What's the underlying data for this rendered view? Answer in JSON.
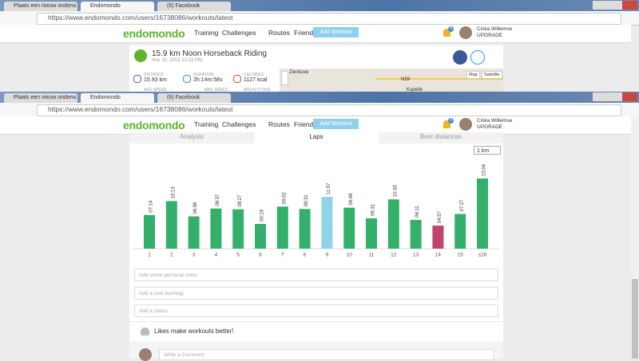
{
  "windows": [
    {
      "tabs": [
        "Plaats een nieuw onderw...",
        "Endomondo",
        "(6) Facebook"
      ],
      "url": "https://www.endomondo.com/users/16738086/workouts/latest",
      "nav": {
        "logo": "endomondo",
        "links": [
          "Training",
          "Challenges",
          "Routes",
          "Friends"
        ],
        "button": "Add Workout",
        "badge": "4",
        "user": "Ciska Willemse",
        "upgrade": "UPGRADE"
      }
    },
    {
      "tabs": [
        "Plaats een nieuw onderw...",
        "Endomondo",
        "(6) Facebook"
      ],
      "url": "https://www.endomondo.com/users/16738086/workouts/latest",
      "nav": {
        "logo": "endomondo",
        "links": [
          "Training",
          "Challenges",
          "Routes",
          "Friends"
        ],
        "button": "Add Workout",
        "badge": "4",
        "user": "Ciska Willemse",
        "upgrade": "UPGRADE"
      }
    }
  ],
  "workout": {
    "title": "15.9 km Noon Horseback Riding",
    "date": "Nov 15, 2015 12:23 PM",
    "stats": [
      {
        "label": "DISTANCE",
        "value": "15.93 km"
      },
      {
        "label": "DURATION",
        "value": "2h:14m:58s"
      },
      {
        "label": "CALORIES",
        "value": "1127 kcal"
      }
    ],
    "more_stats": [
      "AVG SPEED",
      "MAX SPEED",
      "MIN ALTITUDE"
    ],
    "map": {
      "places": [
        "Zierikzee",
        "Kapelle",
        "N59"
      ],
      "types": [
        "Map",
        "Satellite"
      ]
    }
  },
  "section_tabs": [
    "Analysis",
    "Laps",
    "Best distances"
  ],
  "lap_unit": "1 km",
  "laps": [
    {
      "lap": "1",
      "time": "07:14",
      "color": "#34b06c"
    },
    {
      "lap": "2",
      "time": "10:13",
      "color": "#34b06c"
    },
    {
      "lap": "3",
      "time": "06:56",
      "color": "#34b06c"
    },
    {
      "lap": "4",
      "time": "08:37",
      "color": "#34b06c"
    },
    {
      "lap": "5",
      "time": "08:27",
      "color": "#34b06c"
    },
    {
      "lap": "6",
      "time": "05:19",
      "color": "#34b06c"
    },
    {
      "lap": "7",
      "time": "09:02",
      "color": "#34b06c"
    },
    {
      "lap": "8",
      "time": "08:31",
      "color": "#34b06c"
    },
    {
      "lap": "9",
      "time": "11:07",
      "color": "#8fd3e8"
    },
    {
      "lap": "10",
      "time": "08:48",
      "color": "#34b06c"
    },
    {
      "lap": "11",
      "time": "06:31",
      "color": "#34b06c"
    },
    {
      "lap": "12",
      "time": "10:35",
      "color": "#34b06c"
    },
    {
      "lap": "13",
      "time": "06:11",
      "color": "#34b06c"
    },
    {
      "lap": "14",
      "time": "04:57",
      "color": "#c2446c"
    },
    {
      "lap": "15",
      "time": "07:27",
      "color": "#34b06c"
    },
    {
      "lap": "≤16",
      "time": "15:04",
      "color": "#34b06c"
    }
  ],
  "inputs": [
    "Add some personal notes",
    "Add a new hashtag",
    "Add a status"
  ],
  "likes": "Likes make workouts better!",
  "comment": "Write a Comment"
}
